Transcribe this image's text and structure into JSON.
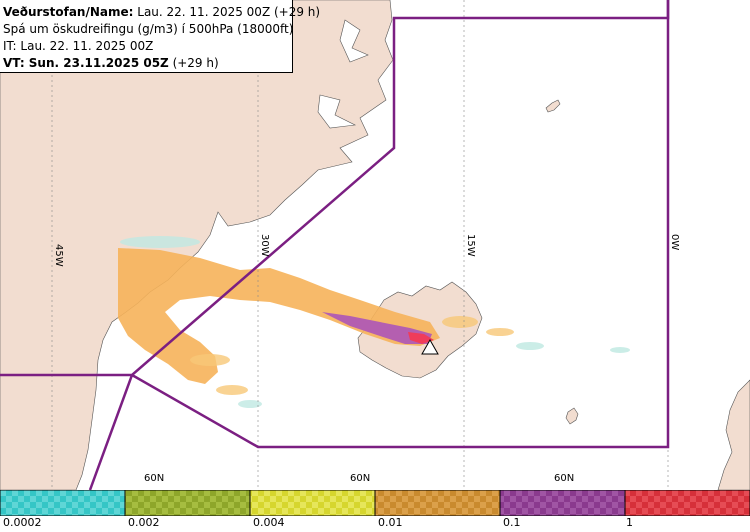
{
  "header": {
    "line1_label": "Veðurstofan/Name:",
    "line1_value": " Lau. 22. 11. 2025 00Z (+29 h)",
    "line2": "Spá um öskudreifingu (g/m3) í 500hPa (18000ft)",
    "line3": "IT: Lau. 22. 11. 2025 00Z",
    "line4_label": "VT: Sun. 23.11.2025 05Z",
    "line4_value": " (+29 h)"
  },
  "grid_labels": {
    "lon_45w": "45W",
    "lon_30w": "30W",
    "lon_15w": "15W",
    "lon_0w": "0W",
    "lat_left": "60N",
    "lat_mid": "60N",
    "lat_right": "60N"
  },
  "legend": {
    "labels": [
      "0.0002",
      "0.002",
      "0.004",
      "0.01",
      "0.1",
      "1"
    ],
    "colors": [
      "#35c6c6",
      "#8ea62a",
      "#d6d62e",
      "#c98a2e",
      "#8a3a8e",
      "#d6303a"
    ]
  },
  "colors": {
    "land": "#f2ddd0",
    "sea": "#ffffff",
    "boundary": "#7b1f82",
    "ash_low": "#f6b35a",
    "ash_mid": "#b45fb0",
    "ash_high": "#f03c5a"
  }
}
